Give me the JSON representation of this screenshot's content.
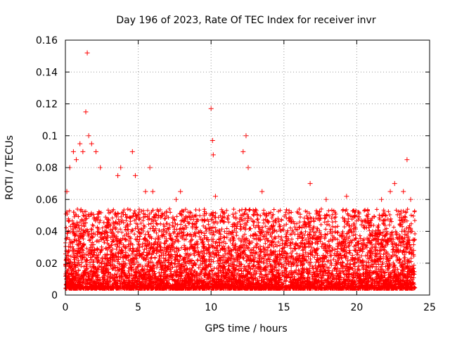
{
  "chart_data": {
    "type": "scatter",
    "title": "Day 196 of 2023, Rate Of TEC Index for receiver invr",
    "xlabel": "GPS time / hours",
    "ylabel": "ROTI / TECUs",
    "xlim": [
      0,
      25
    ],
    "ylim": [
      0,
      0.16
    ],
    "x_ticks": [
      0,
      5,
      10,
      15,
      20,
      25
    ],
    "x_tick_labels": [
      "0",
      "5",
      "10",
      "15",
      "20",
      "25"
    ],
    "y_ticks": [
      0,
      0.02,
      0.04,
      0.06,
      0.08,
      0.1,
      0.12,
      0.14,
      0.16
    ],
    "y_tick_labels": [
      "0",
      "0.02",
      "0.04",
      "0.06",
      "0.08",
      "0.1",
      "0.12",
      "0.14",
      "0.16"
    ],
    "grid": true,
    "marker": "+",
    "series": [
      {
        "name": "ROTI",
        "color": "#ff0000",
        "x": [
          0.05,
          0.2,
          0.35,
          0.5,
          0.65,
          0.8,
          0.95,
          1.1,
          1.25,
          1.4,
          1.55,
          1.7,
          1.85,
          2.0,
          2.15,
          2.3,
          2.5,
          2.7,
          2.9,
          3.1,
          3.3,
          3.5,
          3.7,
          3.9,
          4.1,
          4.3,
          4.5,
          4.7,
          4.9,
          5.1,
          5.3,
          5.5,
          5.7,
          5.9,
          6.1,
          6.3,
          6.5,
          6.7,
          6.9,
          7.1,
          7.3,
          7.5,
          7.7,
          7.9,
          8.1,
          8.3,
          8.5,
          8.7,
          8.9,
          9.1,
          9.3,
          9.5,
          9.7,
          9.9,
          10.05,
          10.2,
          10.4,
          10.6,
          10.8,
          11.0,
          11.2,
          11.4,
          11.6,
          11.8,
          12.0,
          12.2,
          12.35,
          12.5,
          12.7,
          12.9,
          13.1,
          13.3,
          13.5,
          13.7,
          13.9,
          14.1,
          14.3,
          14.5,
          14.7,
          14.9,
          15.1,
          15.3,
          15.5,
          15.7,
          15.9,
          16.1,
          16.3,
          16.5,
          16.7,
          16.9,
          17.1,
          17.3,
          17.5,
          17.7,
          17.9,
          18.1,
          18.3,
          18.5,
          18.7,
          18.9,
          19.1,
          19.3,
          19.5,
          19.7,
          19.9,
          20.1,
          20.3,
          20.5,
          20.7,
          20.9,
          21.1,
          21.3,
          21.5,
          21.7,
          21.9,
          22.1,
          22.3,
          22.5,
          22.7,
          22.9,
          23.1,
          23.3,
          23.5,
          23.7,
          23.9,
          0.1,
          0.3,
          0.55,
          0.75,
          1.0,
          1.2,
          1.4,
          1.5,
          1.6,
          1.8,
          2.1,
          2.4,
          3.6,
          3.8,
          4.6,
          4.8,
          5.5,
          5.8,
          6.0,
          7.6,
          7.9,
          10.0,
          10.1,
          10.15,
          10.3,
          12.2,
          12.4,
          12.55,
          13.5,
          16.8,
          17.9,
          19.3,
          21.7,
          22.3,
          22.6,
          23.2,
          23.45,
          23.7,
          0.15,
          0.6,
          1.3,
          1.9,
          2.6,
          3.2,
          4.0,
          5.2,
          6.6,
          7.3,
          8.8,
          9.6,
          10.7,
          11.5,
          12.8,
          13.7,
          14.6,
          15.4,
          16.2,
          17.4,
          18.6,
          19.8,
          20.6,
          21.4,
          22.2,
          23.0,
          23.8,
          0.25,
          0.9,
          1.7,
          2.3,
          3.4,
          4.4,
          5.9,
          6.8,
          8.4,
          9.2,
          10.5,
          11.9,
          13.2,
          14.2,
          15.8,
          16.6,
          17.6,
          18.8,
          20.2,
          21.0,
          22.0,
          22.9,
          23.6
        ],
        "y": [
          0.018,
          0.025,
          0.03,
          0.028,
          0.035,
          0.04,
          0.042,
          0.038,
          0.045,
          0.05,
          0.04,
          0.035,
          0.03,
          0.028,
          0.025,
          0.022,
          0.02,
          0.018,
          0.02,
          0.022,
          0.025,
          0.024,
          0.03,
          0.028,
          0.03,
          0.025,
          0.022,
          0.02,
          0.025,
          0.03,
          0.032,
          0.035,
          0.038,
          0.03,
          0.028,
          0.032,
          0.03,
          0.028,
          0.025,
          0.022,
          0.02,
          0.022,
          0.025,
          0.024,
          0.022,
          0.02,
          0.025,
          0.03,
          0.028,
          0.032,
          0.035,
          0.03,
          0.028,
          0.03,
          0.035,
          0.03,
          0.025,
          0.022,
          0.02,
          0.022,
          0.02,
          0.025,
          0.03,
          0.028,
          0.025,
          0.03,
          0.035,
          0.03,
          0.025,
          0.028,
          0.03,
          0.035,
          0.04,
          0.035,
          0.03,
          0.025,
          0.022,
          0.02,
          0.022,
          0.025,
          0.022,
          0.02,
          0.018,
          0.02,
          0.022,
          0.025,
          0.028,
          0.03,
          0.032,
          0.03,
          0.028,
          0.025,
          0.022,
          0.025,
          0.028,
          0.03,
          0.028,
          0.025,
          0.022,
          0.025,
          0.028,
          0.03,
          0.028,
          0.025,
          0.028,
          0.03,
          0.032,
          0.035,
          0.03,
          0.028,
          0.03,
          0.032,
          0.035,
          0.032,
          0.03,
          0.035,
          0.038,
          0.035,
          0.03,
          0.035,
          0.04,
          0.038,
          0.035,
          0.03,
          0.028,
          0.065,
          0.08,
          0.09,
          0.085,
          0.095,
          0.09,
          0.115,
          0.152,
          0.1,
          0.095,
          0.09,
          0.08,
          0.075,
          0.08,
          0.09,
          0.075,
          0.065,
          0.08,
          0.065,
          0.06,
          0.065,
          0.117,
          0.097,
          0.088,
          0.062,
          0.09,
          0.1,
          0.08,
          0.065,
          0.07,
          0.06,
          0.062,
          0.06,
          0.065,
          0.07,
          0.065,
          0.085,
          0.06,
          0.02,
          0.015,
          0.012,
          0.018,
          0.015,
          0.012,
          0.014,
          0.012,
          0.016,
          0.012,
          0.014,
          0.013,
          0.012,
          0.015,
          0.013,
          0.016,
          0.012,
          0.014,
          0.013,
          0.012,
          0.015,
          0.014,
          0.016,
          0.013,
          0.014,
          0.013,
          0.015,
          0.01,
          0.008,
          0.009,
          0.007,
          0.009,
          0.008,
          0.007,
          0.009,
          0.008,
          0.009,
          0.007,
          0.008,
          0.009,
          0.007,
          0.008,
          0.009,
          0.008,
          0.007,
          0.009,
          0.008,
          0.007,
          0.009,
          0.008
        ]
      }
    ]
  }
}
